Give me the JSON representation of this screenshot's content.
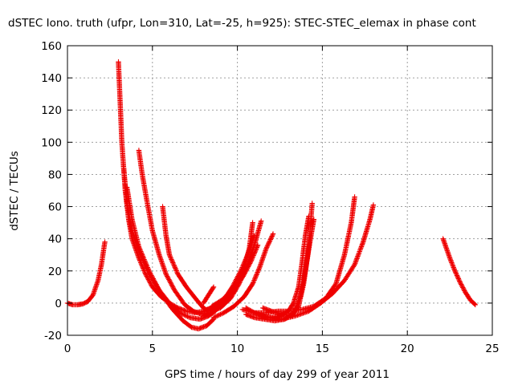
{
  "chart_data": {
    "type": "scatter",
    "title": "dSTEC Iono. truth (ufpr, Lon=310, Lat=-25, h=925): STEC-STEC_elemax in phase cont",
    "xlabel": "GPS time / hours of day 299 of year 2011",
    "ylabel": "dSTEC  / TECUs",
    "xlim": [
      0,
      25
    ],
    "ylim": [
      -20,
      160
    ],
    "xticks": [
      0,
      5,
      10,
      15,
      20,
      25
    ],
    "yticks": [
      -20,
      0,
      20,
      40,
      60,
      80,
      100,
      120,
      140,
      160
    ],
    "grid": true,
    "marker": "plus",
    "color": "#ee0000",
    "series": [
      {
        "points": [
          [
            0,
            0
          ],
          [
            0.3,
            -1
          ],
          [
            0.6,
            -1
          ],
          [
            0.9,
            -0.5
          ],
          [
            1.2,
            1
          ],
          [
            1.5,
            5
          ],
          [
            1.8,
            14
          ],
          [
            2.0,
            24
          ],
          [
            2.2,
            38
          ]
        ]
      },
      {
        "points": [
          [
            3.0,
            150
          ],
          [
            3.1,
            125
          ],
          [
            3.2,
            100
          ],
          [
            3.4,
            70
          ],
          [
            3.6,
            52
          ],
          [
            3.8,
            40
          ],
          [
            4.2,
            28
          ],
          [
            4.6,
            18
          ],
          [
            5.0,
            10
          ],
          [
            5.5,
            4
          ],
          [
            6.0,
            0
          ],
          [
            6.5,
            -3
          ],
          [
            7.0,
            -5
          ],
          [
            7.5,
            -6
          ],
          [
            8.0,
            -5
          ],
          [
            8.5,
            -3
          ]
        ]
      },
      {
        "points": [
          [
            3.3,
            85
          ],
          [
            3.5,
            62
          ],
          [
            3.8,
            45
          ],
          [
            4.3,
            30
          ],
          [
            4.8,
            18
          ],
          [
            5.4,
            8
          ],
          [
            6.0,
            0
          ],
          [
            6.6,
            -6
          ],
          [
            7.2,
            -9
          ],
          [
            7.8,
            -10
          ],
          [
            8.3,
            -8
          ],
          [
            8.7,
            -5
          ]
        ]
      },
      {
        "points": [
          [
            3.5,
            72
          ],
          [
            3.8,
            52
          ],
          [
            4.2,
            35
          ],
          [
            4.8,
            20
          ],
          [
            5.5,
            6
          ],
          [
            6.2,
            -4
          ],
          [
            6.8,
            -11
          ],
          [
            7.3,
            -15
          ],
          [
            7.7,
            -16
          ],
          [
            8.2,
            -14
          ],
          [
            8.6,
            -10
          ]
        ]
      },
      {
        "points": [
          [
            4.2,
            95
          ],
          [
            4.4,
            80
          ],
          [
            4.7,
            62
          ],
          [
            5.0,
            45
          ],
          [
            5.4,
            30
          ],
          [
            5.8,
            18
          ],
          [
            6.3,
            8
          ],
          [
            6.9,
            -1
          ],
          [
            7.4,
            -5
          ],
          [
            7.9,
            -7
          ],
          [
            8.4,
            -6
          ]
        ]
      },
      {
        "points": [
          [
            5.6,
            60
          ],
          [
            5.8,
            42
          ],
          [
            6.0,
            30
          ],
          [
            6.5,
            18
          ],
          [
            7.0,
            10
          ],
          [
            7.6,
            2
          ],
          [
            8.0,
            -3
          ],
          [
            8.3,
            -5
          ]
        ]
      },
      {
        "points": [
          [
            8.0,
            -8
          ],
          [
            8.5,
            -6
          ],
          [
            9.0,
            -2
          ],
          [
            9.5,
            4
          ],
          [
            10.0,
            12
          ],
          [
            10.4,
            22
          ],
          [
            10.7,
            34
          ],
          [
            10.9,
            50
          ]
        ]
      },
      {
        "points": [
          [
            8.2,
            -4
          ],
          [
            8.7,
            -2
          ],
          [
            9.2,
            2
          ],
          [
            9.7,
            10
          ],
          [
            10.2,
            20
          ],
          [
            10.6,
            30
          ],
          [
            11.0,
            42
          ]
        ]
      },
      {
        "points": [
          [
            8.4,
            -5
          ],
          [
            9.0,
            -3
          ],
          [
            9.6,
            3
          ],
          [
            10.1,
            12
          ],
          [
            10.6,
            24
          ],
          [
            11.0,
            36
          ],
          [
            11.4,
            51
          ]
        ]
      },
      {
        "points": [
          [
            8.5,
            -2
          ],
          [
            9.1,
            2
          ],
          [
            9.7,
            8
          ],
          [
            10.3,
            16
          ],
          [
            10.8,
            26
          ],
          [
            11.2,
            36
          ]
        ]
      },
      {
        "points": [
          [
            8.6,
            -9
          ],
          [
            9.2,
            -6
          ],
          [
            9.8,
            -2
          ],
          [
            10.4,
            4
          ],
          [
            10.9,
            12
          ],
          [
            11.3,
            22
          ],
          [
            11.7,
            34
          ],
          [
            12.1,
            43
          ]
        ]
      },
      {
        "points": [
          [
            8.0,
            0
          ],
          [
            8.3,
            5
          ],
          [
            8.6,
            10
          ]
        ]
      },
      {
        "points": [
          [
            10.5,
            -3
          ],
          [
            11.0,
            -6
          ],
          [
            11.5,
            -8
          ],
          [
            12.0,
            -9
          ],
          [
            12.5,
            -8
          ],
          [
            13.0,
            -5
          ],
          [
            13.3,
            0
          ],
          [
            13.6,
            10
          ],
          [
            13.8,
            25
          ],
          [
            14.0,
            42
          ],
          [
            14.2,
            54
          ]
        ]
      },
      {
        "points": [
          [
            10.5,
            -7
          ],
          [
            11.0,
            -9
          ],
          [
            11.6,
            -10
          ],
          [
            12.2,
            -11
          ],
          [
            12.8,
            -10
          ],
          [
            13.3,
            -6
          ],
          [
            13.7,
            4
          ],
          [
            14.0,
            20
          ],
          [
            14.3,
            40
          ],
          [
            14.5,
            52
          ]
        ]
      },
      {
        "points": [
          [
            11.5,
            -3
          ],
          [
            12.0,
            -5
          ],
          [
            12.6,
            -7
          ],
          [
            13.2,
            -8
          ],
          [
            13.6,
            -2
          ],
          [
            13.9,
            12
          ],
          [
            14.2,
            35
          ],
          [
            14.4,
            62
          ]
        ]
      },
      {
        "points": [
          [
            10.3,
            -4
          ],
          [
            11.0,
            -6
          ],
          [
            11.7,
            -6
          ],
          [
            12.4,
            -5
          ],
          [
            13.1,
            -5
          ],
          [
            13.8,
            -4
          ],
          [
            14.5,
            -2
          ],
          [
            15.2,
            3
          ],
          [
            15.8,
            12
          ],
          [
            16.3,
            30
          ],
          [
            16.7,
            50
          ],
          [
            16.9,
            66
          ]
        ]
      },
      {
        "points": [
          [
            11.0,
            -6
          ],
          [
            11.8,
            -9
          ],
          [
            12.6,
            -10
          ],
          [
            13.4,
            -8
          ],
          [
            14.2,
            -5
          ],
          [
            14.9,
            0
          ],
          [
            15.6,
            6
          ],
          [
            16.3,
            14
          ],
          [
            16.9,
            24
          ],
          [
            17.4,
            38
          ],
          [
            17.8,
            52
          ],
          [
            18.0,
            61
          ]
        ]
      },
      {
        "points": [
          [
            22.1,
            40
          ],
          [
            22.3,
            34
          ],
          [
            22.5,
            28
          ],
          [
            22.8,
            20
          ],
          [
            23.1,
            13
          ],
          [
            23.4,
            7
          ],
          [
            23.7,
            2
          ],
          [
            24.0,
            -1
          ]
        ]
      }
    ]
  }
}
